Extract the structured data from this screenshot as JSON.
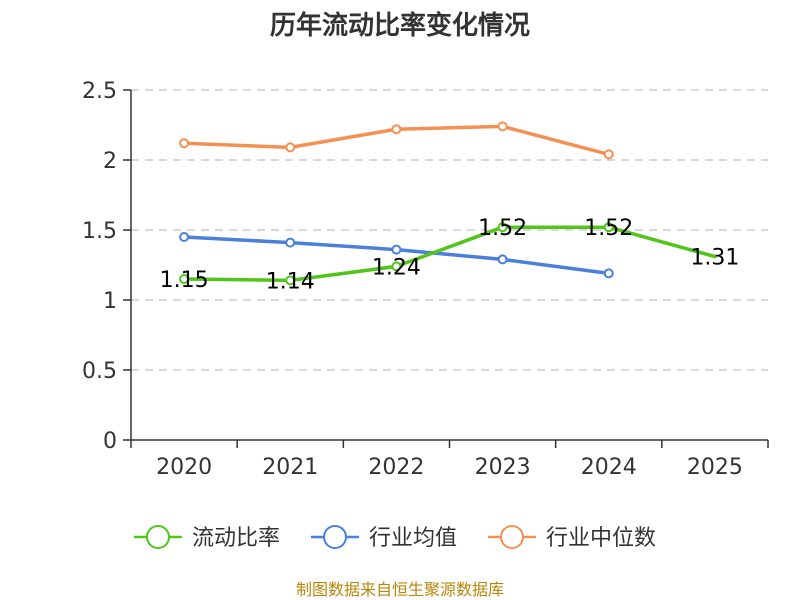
{
  "chart_data": {
    "type": "line",
    "title": "历年流动比率变化情况",
    "categories": [
      "2020",
      "2021",
      "2022",
      "2023",
      "2024",
      "2025"
    ],
    "ylim": [
      0,
      2.5
    ],
    "yticks": [
      "0",
      "0.5",
      "1",
      "1.5",
      "2",
      "2.5"
    ],
    "grid": true,
    "legend_position": "bottom",
    "series": [
      {
        "name": "流动比率",
        "color": "#52c41a",
        "values": [
          1.15,
          1.14,
          1.24,
          1.52,
          1.52,
          1.31
        ],
        "labels": [
          "1.15",
          "1.14",
          "1.24",
          "1.52",
          "1.52",
          "1.31"
        ]
      },
      {
        "name": "行业均值",
        "color": "#4a7fdc",
        "values": [
          1.45,
          1.41,
          1.36,
          1.29,
          1.19,
          null
        ]
      },
      {
        "name": "行业中位数",
        "color": "#f59053",
        "values": [
          2.12,
          2.09,
          2.22,
          2.24,
          2.04,
          null
        ]
      }
    ],
    "source": "制图数据来自恒生聚源数据库"
  }
}
